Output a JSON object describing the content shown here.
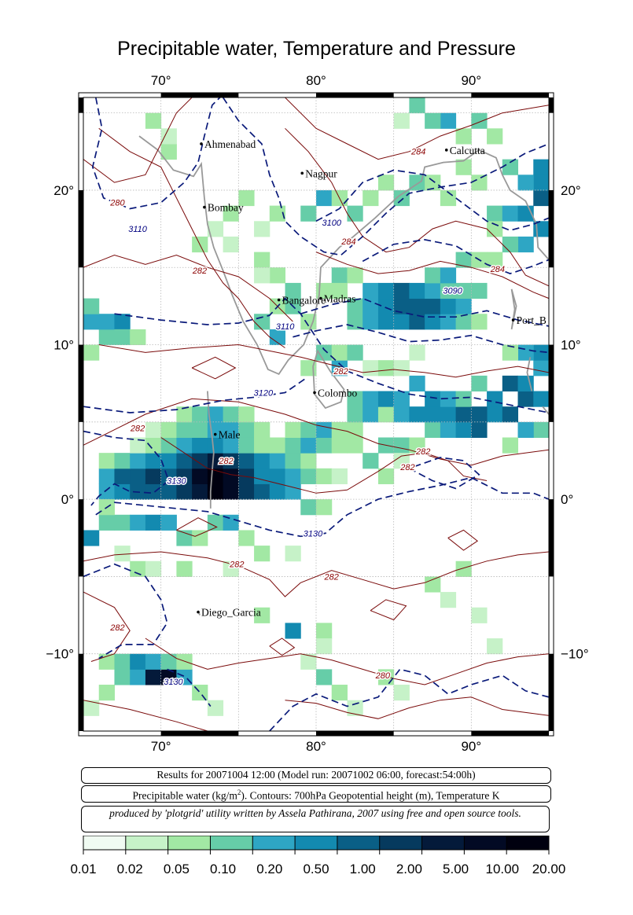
{
  "title": "Precipitable water, Temperature and Pressure",
  "axes": {
    "x_ticks": [
      "70°",
      "80°",
      "90°"
    ],
    "y_ticks": [
      "20°",
      "10°",
      "0°",
      "−10°"
    ],
    "lon_range": [
      65,
      95
    ],
    "lat_range": [
      -15,
      26
    ]
  },
  "cities": [
    {
      "name": "Ahmenabad",
      "lon": 72.6,
      "lat": 23.0
    },
    {
      "name": "Calcutta",
      "lon": 88.4,
      "lat": 22.6
    },
    {
      "name": "Nagpur",
      "lon": 79.1,
      "lat": 21.1
    },
    {
      "name": "Bombay",
      "lon": 72.8,
      "lat": 18.9
    },
    {
      "name": "Bangalore",
      "lon": 77.6,
      "lat": 12.9
    },
    {
      "name": "Madras",
      "lon": 80.3,
      "lat": 13.0
    },
    {
      "name": "Port_B",
      "lon": 92.7,
      "lat": 11.6
    },
    {
      "name": "Colombo",
      "lon": 79.9,
      "lat": 6.9
    },
    {
      "name": "Male",
      "lon": 73.5,
      "lat": 4.2
    },
    {
      "name": "Diego_Garcia",
      "lon": 72.4,
      "lat": -7.3
    }
  ],
  "contour_labels": [
    {
      "text": "280",
      "lon": 67.2,
      "lat": 19.0,
      "color": "#8b0000"
    },
    {
      "text": "3110",
      "lon": 68.5,
      "lat": 17.3,
      "color": "#000080"
    },
    {
      "text": "282",
      "lon": 72.5,
      "lat": 14.6,
      "color": "#8b0000"
    },
    {
      "text": "284",
      "lon": 86.6,
      "lat": 22.3,
      "color": "#8b0000"
    },
    {
      "text": "3100",
      "lon": 81.0,
      "lat": 17.7,
      "color": "#000080"
    },
    {
      "text": "284",
      "lon": 82.1,
      "lat": 16.5,
      "color": "#8b0000"
    },
    {
      "text": "3090",
      "lon": 88.8,
      "lat": 13.3,
      "color": "#000080"
    },
    {
      "text": "284",
      "lon": 91.7,
      "lat": 14.7,
      "color": "#8b0000"
    },
    {
      "text": "3110",
      "lon": 78.0,
      "lat": 11.0,
      "color": "#000080"
    },
    {
      "text": "282",
      "lon": 81.6,
      "lat": 8.1,
      "color": "#8b0000"
    },
    {
      "text": "3120",
      "lon": 76.6,
      "lat": 6.7,
      "color": "#000080"
    },
    {
      "text": "282",
      "lon": 68.5,
      "lat": 4.4,
      "color": "#8b0000"
    },
    {
      "text": "282",
      "lon": 86.9,
      "lat": 2.9,
      "color": "#8b0000"
    },
    {
      "text": "282",
      "lon": 85.9,
      "lat": 1.9,
      "color": "#8b0000"
    },
    {
      "text": "3130",
      "lon": 71.0,
      "lat": 1.0,
      "color": "#000080"
    },
    {
      "text": "282",
      "lon": 74.2,
      "lat": 2.3,
      "color": "#8b0000"
    },
    {
      "text": "3130",
      "lon": 79.8,
      "lat": -2.4,
      "color": "#000080"
    },
    {
      "text": "282",
      "lon": 74.9,
      "lat": -4.4,
      "color": "#8b0000"
    },
    {
      "text": "282",
      "lon": 81.0,
      "lat": -5.2,
      "color": "#8b0000"
    },
    {
      "text": "282",
      "lon": 67.2,
      "lat": -8.5,
      "color": "#8b0000"
    },
    {
      "text": "3130",
      "lon": 70.8,
      "lat": -12.0,
      "color": "#000080"
    },
    {
      "text": "280",
      "lon": 84.3,
      "lat": -11.6,
      "color": "#8b0000"
    }
  ],
  "info": {
    "line1": "Results for 20071004 12:00 (Model run: 20071002 06:00, forecast:54:00h)",
    "line2_a": "Precipitable water (kg/m",
    "line2_sup": "2",
    "line2_b": ").  Contours: 700hPa Geopotential height (m), Temperature K",
    "line3": "produced by 'plotgrid' utility written by Assela Pathirana, 2007 using free and open source tools."
  },
  "colorbar": {
    "colors": [
      "#f0fbf2",
      "#c6f2c8",
      "#a2e8a4",
      "#66cda8",
      "#2ea6c4",
      "#138ab0",
      "#0a5f86",
      "#063a5e",
      "#041a3a",
      "#020a24",
      "#00000f"
    ],
    "labels": [
      "0.01",
      "0.02",
      "0.05",
      "0.10",
      "0.20",
      "0.50",
      "1.00",
      "2.00",
      "5.00",
      "10.00",
      "20.00"
    ]
  }
}
